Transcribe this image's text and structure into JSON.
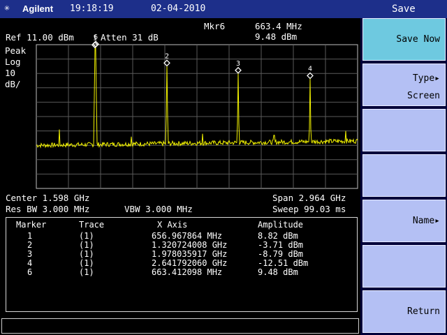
{
  "header": {
    "brand_icon": "✳",
    "brand": "Agilent",
    "time": "19:18:19",
    "date": "02-04-2010",
    "menu_title": "Save"
  },
  "display": {
    "marker_readout_label": "Mkr6",
    "marker_readout_freq": "663.4 MHz",
    "marker_readout_amp": "9.48 dBm",
    "ref_level": "Ref 11.00 dBm",
    "attenuation": "Atten 31 dB",
    "detector": "Peak",
    "scale_type": "Log",
    "scale_value": "10",
    "scale_unit": "dB/",
    "center": "Center 1.598 GHz",
    "span": "Span 2.964 GHz",
    "res_bw": "Res BW 3.000 MHz",
    "vbw": "VBW 3.000 MHz",
    "sweep": "Sweep 99.03 ms"
  },
  "chart_data": {
    "type": "line",
    "trace_color": "#f2f200",
    "grid_color": "#5a5a5a",
    "ref_level_dbm": 11.0,
    "db_per_div": 10,
    "center_ghz": 1.598,
    "span_ghz": 2.964,
    "noise_floor_dbm": -59,
    "markers": [
      {
        "label": "1",
        "freq_ghz": 0.656967864,
        "amp_dbm": 8.82
      },
      {
        "label": "2",
        "freq_ghz": 1.320724008,
        "amp_dbm": -3.71
      },
      {
        "label": "3",
        "freq_ghz": 1.978035917,
        "amp_dbm": -8.79
      },
      {
        "label": "4",
        "freq_ghz": 2.64179206,
        "amp_dbm": -12.51
      },
      {
        "label": "6",
        "freq_ghz": 0.663412098,
        "amp_dbm": 9.48
      }
    ],
    "minor_spurs": [
      {
        "freq_ghz": 0.33,
        "amp_dbm": -48
      },
      {
        "freq_ghz": 0.99,
        "amp_dbm": -53
      },
      {
        "freq_ghz": 1.65,
        "amp_dbm": -51
      },
      {
        "freq_ghz": 2.31,
        "amp_dbm": -52
      },
      {
        "freq_ghz": 2.97,
        "amp_dbm": -49
      }
    ]
  },
  "marker_table": {
    "headers": [
      "Marker",
      "Trace",
      "X Axis",
      "Amplitude"
    ],
    "rows": [
      {
        "marker": "1",
        "trace": "(1)",
        "x": "656.967864 MHz",
        "amp": "8.82 dBm"
      },
      {
        "marker": "2",
        "trace": "(1)",
        "x": "1.320724008 GHz",
        "amp": "-3.71 dBm"
      },
      {
        "marker": "3",
        "trace": "(1)",
        "x": "1.978035917 GHz",
        "amp": "-8.79 dBm"
      },
      {
        "marker": "4",
        "trace": "(1)",
        "x": "2.641792060 GHz",
        "amp": "-12.51 dBm"
      },
      {
        "marker": "6",
        "trace": "(1)",
        "x": "663.412098 MHz",
        "amp": "9.48 dBm"
      }
    ]
  },
  "softkeys": [
    {
      "label": "Save Now",
      "line2": "",
      "arrow": "",
      "active": true
    },
    {
      "label": "Type",
      "line2": "Screen",
      "arrow": "▸",
      "active": false
    },
    {
      "label": "",
      "line2": "",
      "arrow": "",
      "active": false
    },
    {
      "label": "",
      "line2": "",
      "arrow": "",
      "active": false
    },
    {
      "label": "Name",
      "line2": "",
      "arrow": "▸",
      "active": false
    },
    {
      "label": "",
      "line2": "",
      "arrow": "",
      "active": false
    },
    {
      "label": "Return",
      "line2": "",
      "arrow": "",
      "active": false
    }
  ]
}
